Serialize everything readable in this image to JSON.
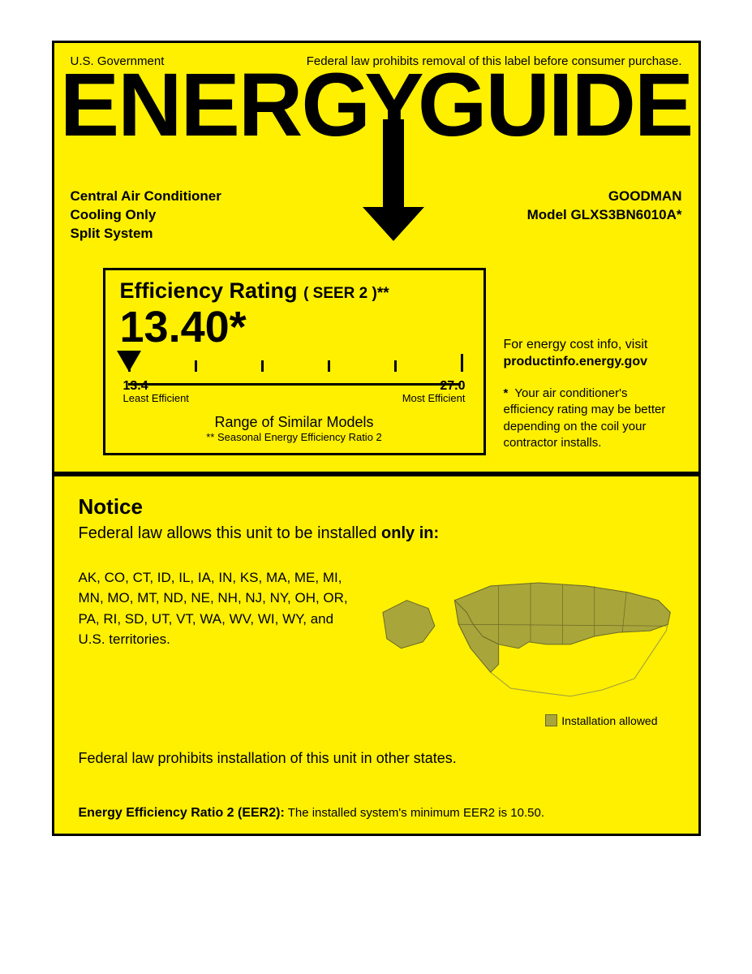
{
  "colors": {
    "background": "#fff000",
    "border": "#000000",
    "text": "#000000",
    "map_allowed": "#a8a53b",
    "map_allowed_stroke": "#6b6a26",
    "map_disallowed": "#fff000",
    "map_disallowed_stroke": "#a8a53b"
  },
  "header": {
    "left": "U.S. Government",
    "right": "Federal law prohibits removal of this label before consumer purchase.",
    "logo_left": "ENERG",
    "logo_y": "Y",
    "logo_right": "GUIDE"
  },
  "product": {
    "line1": "Central Air Conditioner",
    "line2": "Cooling Only",
    "line3": "Split System",
    "brand": "GOODMAN",
    "model_label": "Model",
    "model": "GLXS3BN6010A*"
  },
  "rating": {
    "title": "Efficiency Rating",
    "title_sub": "( SEER 2 )**",
    "value": "13.40*",
    "scale_min": "13.4",
    "scale_min_label": "Least Efficient",
    "scale_max": "27.0",
    "scale_max_label": "Most Efficient",
    "range_caption": "Range of Similar Models",
    "range_sub": "** Seasonal Energy Efficiency Ratio 2",
    "tick_count": 6,
    "pointer_position_pct": 0
  },
  "side": {
    "cost_line": "For energy cost info, visit",
    "cost_url": "productinfo.energy.gov",
    "disclaimer_star": "*",
    "disclaimer": "Your air conditioner's efficiency rating may be better depending on the coil your contractor installs."
  },
  "notice": {
    "title": "Notice",
    "intro_pre": "Federal law allows this unit to be installed ",
    "intro_bold": "only in:",
    "states": "AK, CO, CT, ID, IL, IA, IN, KS, MA, ME, MI, MN, MO, MT, ND, NE, NH, NJ, NY, OH, OR, PA, RI, SD, UT, VT, WA, WV, WI, WY, and U.S. territories.",
    "legend": "Installation allowed",
    "prohibit": "Federal law prohibits installation of this unit in other states."
  },
  "eer": {
    "label": "Energy Efficiency Ratio 2 (EER2):",
    "text": "The installed system's minimum EER2 is 10.50."
  }
}
